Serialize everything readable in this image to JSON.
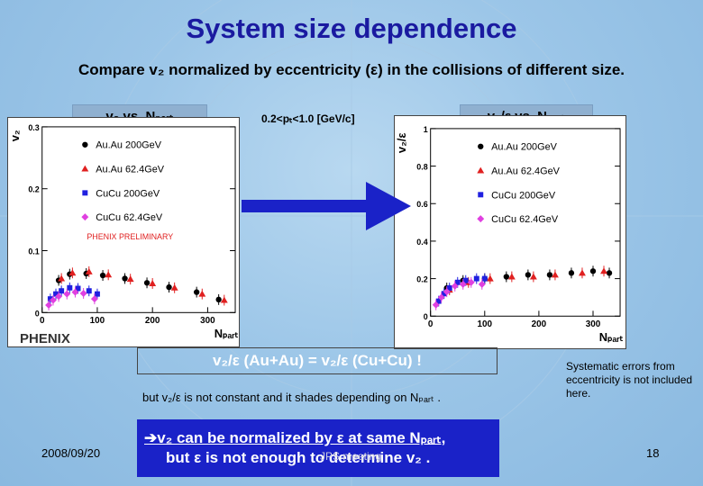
{
  "title": "System size dependence",
  "subtitle": "Compare v₂ normalized by eccentricity (ε) in the collisions of different size.",
  "left_label": "v₂ vs. Nₚₐᵣₜ",
  "right_label": "v₂/ε vs. Nₚₐᵣₜ",
  "pt_range": "0.2<pₜ<1.0 [GeV/c]",
  "equation": "v₂/ε (Au+Au) = v₂/ε (Cu+Cu) !",
  "note": "but v₂/ε is not constant and it shades depending on Nₚₐᵣₜ .",
  "systematic_note": "Systematic errors from eccentricity is not included here.",
  "conclusion_line1": "➔v₂ can be normalized by ε at same Nₚₐᵣₜ,",
  "conclusion_line2": "but ε is not enough to determine v₂ .",
  "date": "2008/09/20",
  "meeting": "JPS meeting",
  "page_number": "18",
  "logo_text": "PHENIX",
  "colors": {
    "title": "#1a1aa0",
    "AuAu200": "#000000",
    "AuAu62": "#e02020",
    "CuCu200": "#2020e0",
    "CuCu62": "#e040e0",
    "arrow": "#1a22c8"
  },
  "chart_data": [
    {
      "type": "scatter",
      "title": "",
      "xlabel": "Nₚₐᵣₜ",
      "ylabel": "v₂",
      "xlim": [
        0,
        350
      ],
      "ylim": [
        0,
        0.3
      ],
      "xticks": [
        0,
        100,
        200,
        300
      ],
      "yticks": [
        0,
        0.1,
        0.2,
        0.3
      ],
      "ytick_labels": [
        "0",
        "0.1",
        "0.2",
        "0.3"
      ],
      "annotation": "PHENIX PRELIMINARY",
      "legend_position": "top-left",
      "series": [
        {
          "name": "Au.Au 200GeV",
          "color": "#000000",
          "marker": "circle",
          "x": [
            30,
            50,
            80,
            110,
            150,
            190,
            230,
            280,
            320
          ],
          "y": [
            0.052,
            0.062,
            0.063,
            0.06,
            0.055,
            0.048,
            0.041,
            0.033,
            0.021
          ]
        },
        {
          "name": "Au.Au 62.4GeV",
          "color": "#e02020",
          "marker": "triangle",
          "x": [
            35,
            55,
            85,
            120,
            160,
            200,
            240,
            290,
            330
          ],
          "y": [
            0.055,
            0.064,
            0.066,
            0.061,
            0.054,
            0.047,
            0.04,
            0.03,
            0.02
          ]
        },
        {
          "name": "CuCu 200GeV",
          "color": "#2020e0",
          "marker": "square",
          "x": [
            15,
            25,
            35,
            50,
            65,
            85,
            100
          ],
          "y": [
            0.022,
            0.03,
            0.035,
            0.04,
            0.039,
            0.035,
            0.03
          ]
        },
        {
          "name": "CuCu 62.4GeV",
          "color": "#e040e0",
          "marker": "diamond",
          "x": [
            12,
            20,
            30,
            45,
            60,
            75,
            95
          ],
          "y": [
            0.012,
            0.02,
            0.026,
            0.03,
            0.033,
            0.031,
            0.022
          ]
        }
      ]
    },
    {
      "type": "scatter",
      "title": "",
      "xlabel": "Nₚₐᵣₜ",
      "ylabel": "v₂/ε",
      "xlim": [
        0,
        350
      ],
      "ylim": [
        0,
        1.0
      ],
      "xticks": [
        0,
        100,
        200,
        300
      ],
      "yticks": [
        0,
        0.2,
        0.4,
        0.6,
        0.8,
        1
      ],
      "ytick_labels": [
        "0",
        "0.2",
        "0.4",
        "0.6",
        "0.8",
        "1"
      ],
      "legend_position": "top-right",
      "series": [
        {
          "name": "Au.Au 200GeV",
          "color": "#000000",
          "marker": "circle",
          "x": [
            30,
            60,
            100,
            140,
            180,
            220,
            260,
            300,
            330
          ],
          "y": [
            0.15,
            0.19,
            0.2,
            0.21,
            0.22,
            0.22,
            0.23,
            0.24,
            0.23
          ]
        },
        {
          "name": "Au.Au 62.4GeV",
          "color": "#e02020",
          "marker": "triangle",
          "x": [
            35,
            70,
            110,
            150,
            190,
            230,
            280,
            320
          ],
          "y": [
            0.14,
            0.18,
            0.2,
            0.21,
            0.21,
            0.22,
            0.23,
            0.24
          ]
        },
        {
          "name": "CuCu 200GeV",
          "color": "#2020e0",
          "marker": "square",
          "x": [
            15,
            25,
            35,
            50,
            65,
            85,
            100
          ],
          "y": [
            0.08,
            0.12,
            0.15,
            0.18,
            0.19,
            0.2,
            0.2
          ]
        },
        {
          "name": "CuCu 62.4GeV",
          "color": "#e040e0",
          "marker": "diamond",
          "x": [
            10,
            20,
            30,
            45,
            60,
            75,
            95
          ],
          "y": [
            0.06,
            0.1,
            0.13,
            0.16,
            0.17,
            0.18,
            0.17
          ]
        }
      ]
    }
  ]
}
